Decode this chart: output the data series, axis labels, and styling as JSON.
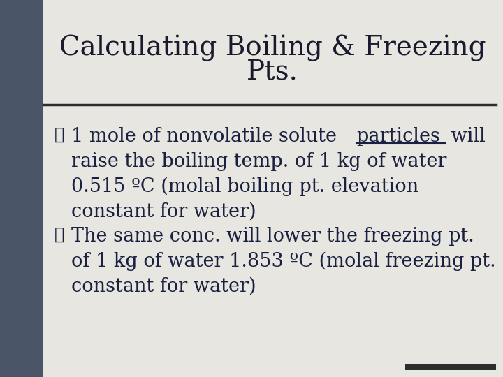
{
  "title_line1": "Calculating Boiling & Freezing",
  "title_line2": "Pts.",
  "bg_color": "#e8e6e0",
  "title_color": "#1a1a2e",
  "text_color": "#1a2040",
  "sidebar_color": "#4a5568",
  "divider_color": "#2d2d2d",
  "bottom_bar_color": "#2d2d2d",
  "bullet_symbol": "❖",
  "bullet1_line1_before": "1 mole of nonvolatile solute ",
  "bullet1_line1_under": "particles",
  "bullet1_line1_after": " will",
  "bullet1_lines": [
    "raise the boiling temp. of 1 kg of water",
    "0.515 ºC (molal boiling pt. elevation",
    "constant for water)"
  ],
  "bullet2_lines": [
    "The same conc. will lower the freezing pt.",
    "of 1 kg of water 1.853 ºC (molal freezing pt.",
    "constant for water)"
  ],
  "title_fontsize": 28,
  "body_fontsize": 19.5,
  "figsize": [
    7.2,
    5.4
  ],
  "dpi": 100
}
